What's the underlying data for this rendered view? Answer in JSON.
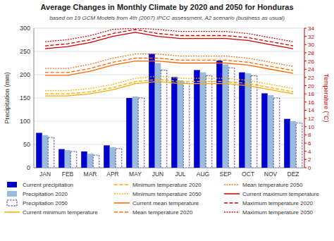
{
  "chart_data": {
    "type": "bar",
    "title": "Average Changes in Monthly Climate by 2020 and 2050 for Honduras",
    "subtitle": "based on 19 GCM Models from 4th (2007) IPCC assessment, A2 scenario (business as usual)",
    "categories": [
      "JAN",
      "FEB",
      "MAR",
      "APR",
      "MAY",
      "JUN",
      "JUL",
      "AUG",
      "SEP",
      "OCT",
      "NOV",
      "DEZ"
    ],
    "series": [
      {
        "name": "Current precipitation",
        "type": "bar",
        "color": "#0000cc",
        "values": [
          75,
          40,
          35,
          48,
          150,
          245,
          195,
          210,
          230,
          205,
          160,
          105
        ]
      },
      {
        "name": "Precipitation 2020",
        "type": "bar",
        "color": "#99bbdd",
        "values": [
          70,
          38,
          30,
          44,
          153,
          225,
          188,
          205,
          222,
          203,
          156,
          100
        ]
      },
      {
        "name": "Precipitation 2050",
        "type": "bar",
        "color": "#ffffff",
        "line_style": "dashed",
        "values": [
          65,
          35,
          27,
          41,
          150,
          210,
          182,
          198,
          215,
          198,
          150,
          96
        ]
      },
      {
        "name": "Current minimum temperature",
        "type": "line",
        "axis": "y2",
        "color": "#ffaa00",
        "line_style": "solid",
        "values": [
          17.5,
          17.5,
          18.0,
          19.0,
          20.5,
          21.0,
          20.5,
          20.5,
          20.5,
          20.0,
          19.0,
          18.0
        ]
      },
      {
        "name": "Minimum temperature 2020",
        "type": "line",
        "axis": "y2",
        "color": "#ffaa00",
        "line_style": "dashed",
        "values": [
          18.0,
          18.0,
          18.5,
          19.5,
          21.0,
          21.5,
          21.0,
          21.0,
          21.0,
          20.5,
          19.5,
          18.5
        ]
      },
      {
        "name": "Minimum temperature 2050",
        "type": "line",
        "axis": "y2",
        "color": "#ffaa00",
        "line_style": "dotted",
        "values": [
          18.8,
          18.8,
          19.3,
          20.3,
          21.8,
          22.3,
          21.8,
          21.8,
          21.8,
          21.3,
          20.3,
          19.3
        ]
      },
      {
        "name": "Current mean temperature",
        "type": "line",
        "axis": "y2",
        "color": "#ff6600",
        "line_style": "solid",
        "values": [
          22.5,
          22.5,
          23.5,
          25.0,
          26.0,
          26.0,
          25.5,
          25.5,
          25.5,
          25.0,
          24.0,
          23.0
        ]
      },
      {
        "name": "Mean temperature 2020",
        "type": "line",
        "axis": "y2",
        "color": "#ff6600",
        "line_style": "dashed",
        "values": [
          23.2,
          23.2,
          24.2,
          25.7,
          26.7,
          26.7,
          26.2,
          26.2,
          26.2,
          25.7,
          24.7,
          23.7
        ]
      },
      {
        "name": "Mean temperature 2050",
        "type": "line",
        "axis": "y2",
        "color": "#ff6600",
        "line_style": "dotted",
        "values": [
          24.2,
          24.2,
          25.2,
          26.7,
          27.7,
          27.7,
          27.2,
          27.2,
          27.2,
          26.7,
          25.7,
          24.7
        ]
      },
      {
        "name": "Current maximum temperature",
        "type": "line",
        "axis": "y2",
        "color": "#cc0000",
        "line_style": "solid",
        "values": [
          29.0,
          29.5,
          30.5,
          32.0,
          33.0,
          32.0,
          31.5,
          31.5,
          31.5,
          31.0,
          30.0,
          29.0
        ]
      },
      {
        "name": "Maximum temperature 2020",
        "type": "line",
        "axis": "y2",
        "color": "#cc0000",
        "line_style": "dashed",
        "values": [
          29.7,
          30.2,
          31.2,
          32.7,
          33.7,
          32.7,
          32.2,
          32.2,
          32.2,
          31.7,
          30.7,
          29.7
        ]
      },
      {
        "name": "Maximum temperature 2050",
        "type": "line",
        "axis": "y2",
        "color": "#cc0000",
        "line_style": "dotted",
        "values": [
          30.7,
          31.2,
          32.2,
          33.7,
          34.0,
          33.7,
          33.2,
          33.2,
          33.2,
          32.7,
          31.7,
          30.7
        ]
      }
    ],
    "ylabel": "Precipitation (mm)",
    "y2label": "Temperature (°C)",
    "ylim": [
      0,
      300
    ],
    "yticks": [
      0,
      50,
      100,
      150,
      200,
      250,
      300
    ],
    "y2lim": [
      0,
      34
    ],
    "y2ticks": [
      0,
      2,
      4,
      6,
      8,
      10,
      12,
      14,
      16,
      18,
      20,
      22,
      24,
      26,
      28,
      30,
      32,
      34
    ],
    "grid": true,
    "legend": "bottom"
  }
}
